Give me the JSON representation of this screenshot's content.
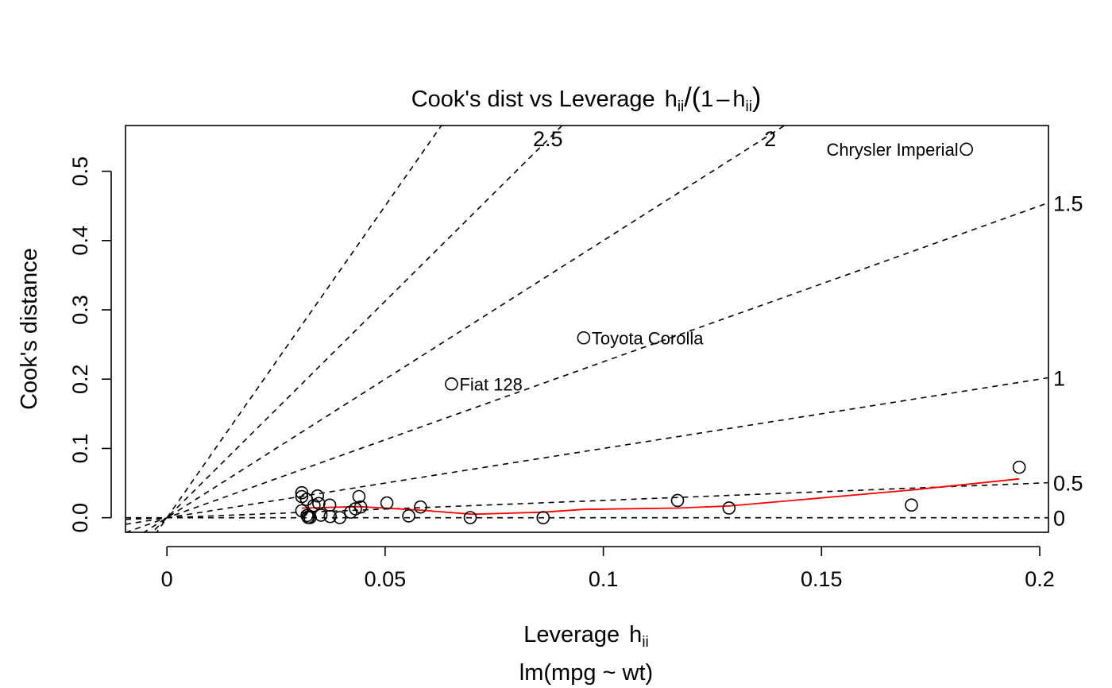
{
  "chart_data": {
    "type": "scatter",
    "title_main": "Cook's dist vs Leverage",
    "title_h": "h",
    "title_sub": "ii",
    "title_one": "1",
    "title_minus": "–",
    "xlabel_main": "Leverage",
    "xlabel_h": "h",
    "xlabel_sub": "ii",
    "ylabel": "Cook's distance",
    "subtitle": "lm(mpg ~ wt)",
    "xlim": [
      -0.0095,
      0.202
    ],
    "ylim": [
      -0.021,
      0.566
    ],
    "x_ticks": [
      {
        "value": 0,
        "label": "0"
      },
      {
        "value": 0.05,
        "label": "0.05"
      },
      {
        "value": 0.1,
        "label": "0.1"
      },
      {
        "value": 0.15,
        "label": "0.15"
      },
      {
        "value": 0.2,
        "label": "0.2"
      }
    ],
    "y_ticks": [
      {
        "value": 0,
        "label": "0.0"
      },
      {
        "value": 0.1,
        "label": "0.1"
      },
      {
        "value": 0.2,
        "label": "0.2"
      },
      {
        "value": 0.3,
        "label": "0.3"
      },
      {
        "value": 0.4,
        "label": "0.4"
      },
      {
        "value": 0.5,
        "label": "0.5"
      }
    ],
    "contours": [
      {
        "slope": 0.0,
        "label": "0"
      },
      {
        "slope": 0.25,
        "label": "0.5"
      },
      {
        "slope": 1.0,
        "label": "1"
      },
      {
        "slope": 2.25,
        "label": "1.5"
      },
      {
        "slope": 4.0,
        "label": "2"
      },
      {
        "slope": 6.25,
        "label": "2.5"
      },
      {
        "slope": 9.0,
        "label": ""
      }
    ],
    "points": [
      {
        "x": 0.0309,
        "y": 0.0361
      },
      {
        "x": 0.0309,
        "y": 0.0305
      },
      {
        "x": 0.0309,
        "y": 0.0101
      },
      {
        "x": 0.032,
        "y": 0.0264
      },
      {
        "x": 0.0321,
        "y": 0.0032
      },
      {
        "x": 0.0323,
        "y": 0.0008
      },
      {
        "x": 0.0324,
        "y": 0.0004
      },
      {
        "x": 0.0328,
        "y": 0.0003
      },
      {
        "x": 0.0337,
        "y": 0.0178
      },
      {
        "x": 0.0345,
        "y": 0.0314
      },
      {
        "x": 0.0348,
        "y": 0.0205
      },
      {
        "x": 0.0353,
        "y": 0.0037
      },
      {
        "x": 0.0373,
        "y": 0.0182
      },
      {
        "x": 0.0374,
        "y": 0.0018
      },
      {
        "x": 0.0396,
        "y": 0.0002
      },
      {
        "x": 0.0421,
        "y": 0.0081
      },
      {
        "x": 0.0432,
        "y": 0.0129
      },
      {
        "x": 0.044,
        "y": 0.0306
      },
      {
        "x": 0.0444,
        "y": 0.0155
      },
      {
        "x": 0.0504,
        "y": 0.0213
      },
      {
        "x": 0.0554,
        "y": 0.0027
      },
      {
        "x": 0.0581,
        "y": 0.0155
      },
      {
        "x": 0.0695,
        "y": 0.0002
      },
      {
        "x": 0.0862,
        "y": 0.0001
      },
      {
        "x": 0.0955,
        "y": 0.2596,
        "label": "Toyota Corolla",
        "label_pos": "right"
      },
      {
        "x": 0.117,
        "y": 0.0249
      },
      {
        "x": 0.1288,
        "y": 0.014
      },
      {
        "x": 0.1706,
        "y": 0.0183
      },
      {
        "x": 0.1832,
        "y": 0.5318,
        "label": "Chrysler Imperial",
        "label_pos": "left"
      },
      {
        "x": 0.1953,
        "y": 0.0729
      },
      {
        "x": 0.0652,
        "y": 0.193,
        "label": "Fiat 128",
        "label_pos": "right"
      }
    ],
    "smooth": [
      {
        "x": 0.0309,
        "y": 0.014
      },
      {
        "x": 0.044,
        "y": 0.016
      },
      {
        "x": 0.0581,
        "y": 0.011
      },
      {
        "x": 0.07,
        "y": 0.005
      },
      {
        "x": 0.0862,
        "y": 0.008
      },
      {
        "x": 0.0955,
        "y": 0.012
      },
      {
        "x": 0.117,
        "y": 0.014
      },
      {
        "x": 0.1288,
        "y": 0.017
      },
      {
        "x": 0.1706,
        "y": 0.04
      },
      {
        "x": 0.1953,
        "y": 0.056
      }
    ],
    "colors": {
      "points": "#000000",
      "smooth": "#ff0000",
      "contour": "#000000"
    },
    "grid": false,
    "legend": "none"
  }
}
